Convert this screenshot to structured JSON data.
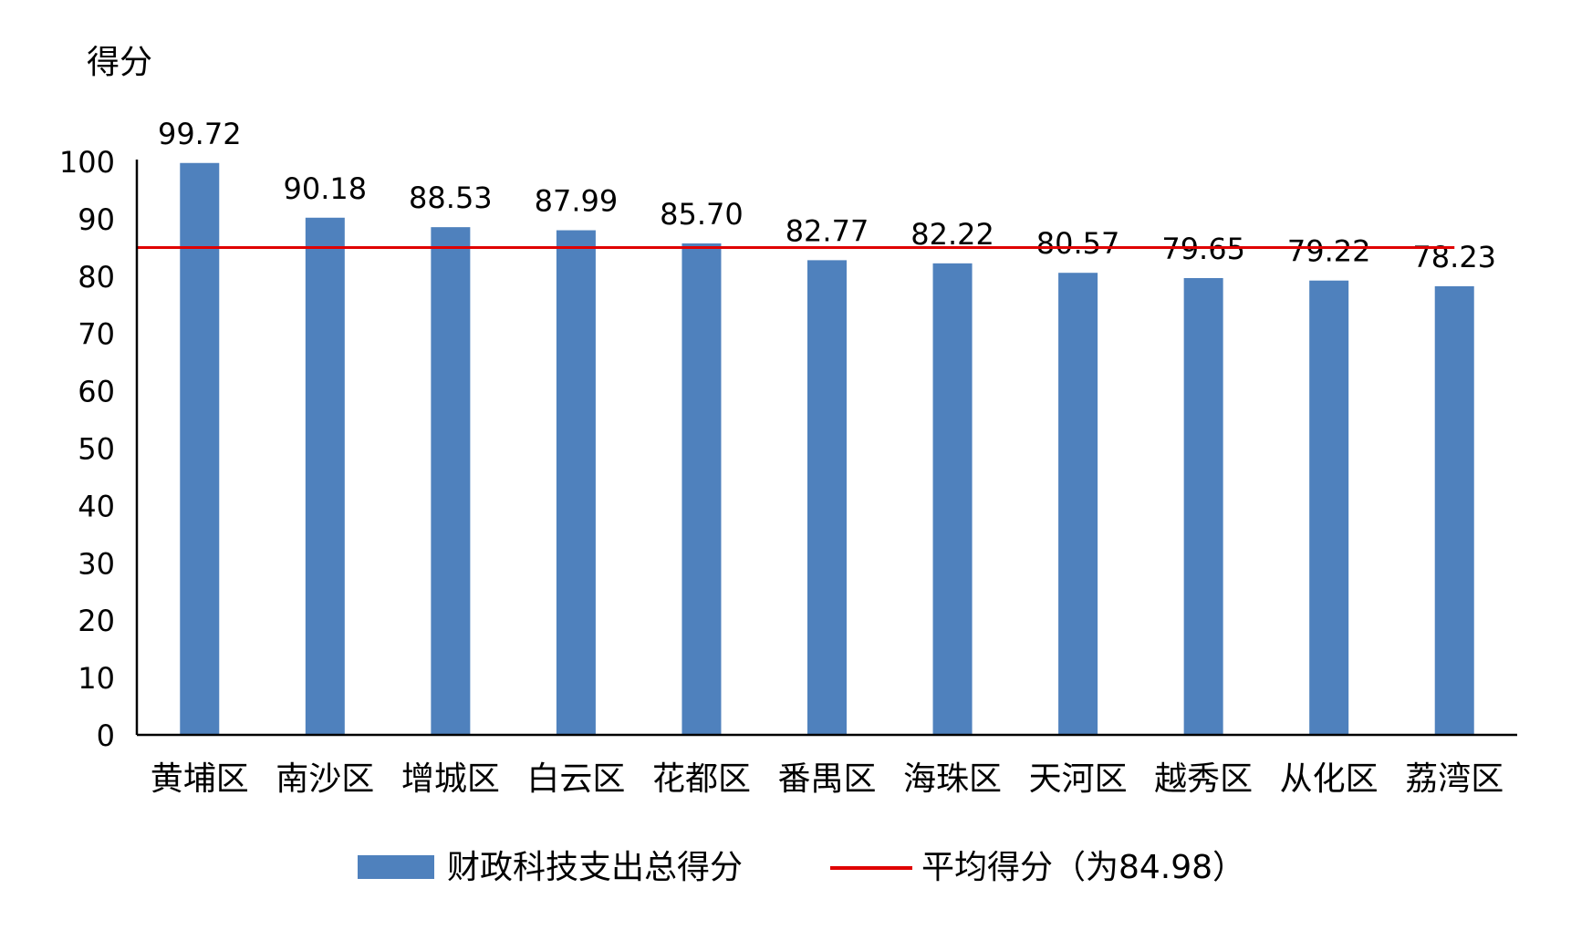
{
  "chart_data": {
    "type": "bar",
    "title": "",
    "xlabel": "",
    "ylabel": "得分",
    "ylim": [
      0,
      100
    ],
    "yticks": [
      0,
      10,
      20,
      30,
      40,
      50,
      60,
      70,
      80,
      90,
      100
    ],
    "categories": [
      "黄埔区",
      "南沙区",
      "增城区",
      "白云区",
      "花都区",
      "番禺区",
      "海珠区",
      "天河区",
      "越秀区",
      "从化区",
      "荔湾区"
    ],
    "series": [
      {
        "name": "财政科技支出总得分",
        "type": "bar",
        "color": "#4f81bd",
        "values": [
          99.72,
          90.18,
          88.53,
          87.99,
          85.7,
          82.77,
          82.22,
          80.57,
          79.65,
          79.22,
          78.23
        ],
        "value_labels": [
          "99.72",
          "90.18",
          "88.53",
          "87.99",
          "85.70",
          "82.77",
          "82.22",
          "80.57",
          "79.65",
          "79.22",
          "78.23"
        ]
      },
      {
        "name": "平均得分（为84.98）",
        "type": "line",
        "color": "#e00000",
        "value": 84.98
      }
    ],
    "legend_position": "bottom",
    "grid": false
  }
}
